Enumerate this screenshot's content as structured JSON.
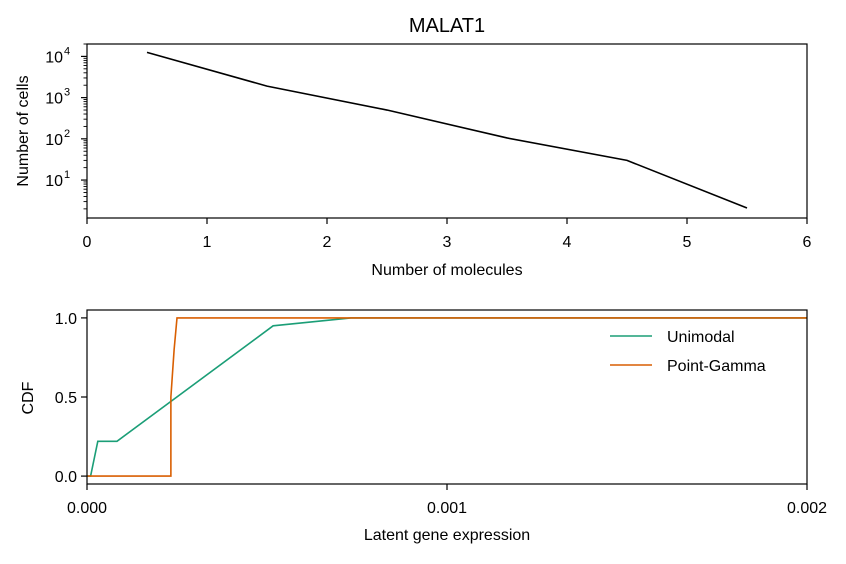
{
  "chart_data": [
    {
      "type": "line",
      "title": "MALAT1",
      "xlabel": "Number of molecules",
      "ylabel": "Number of cells",
      "yscale": "log",
      "xlim": [
        0,
        6
      ],
      "ylim": [
        1.2,
        20000
      ],
      "x_ticks": [
        "0",
        "1",
        "2",
        "3",
        "4",
        "5",
        "6"
      ],
      "y_ticks": [
        {
          "value": 10,
          "base": "10",
          "exp": "1"
        },
        {
          "value": 100,
          "base": "10",
          "exp": "2"
        },
        {
          "value": 1000,
          "base": "10",
          "exp": "3"
        },
        {
          "value": 10000,
          "base": "10",
          "exp": "4"
        }
      ],
      "series": [
        {
          "color": "#000000",
          "x": [
            0.5,
            1.5,
            2.5,
            3.5,
            4.5,
            5.5
          ],
          "y": [
            12500,
            1900,
            500,
            105,
            30,
            2.1
          ]
        }
      ],
      "grid": false
    },
    {
      "type": "line",
      "title": "",
      "xlabel": "Latent gene expression",
      "ylabel": "CDF",
      "xlim": [
        0,
        0.002
      ],
      "ylim": [
        -0.05,
        1.05
      ],
      "x_ticks": [
        "0.000",
        "0.001",
        "0.002"
      ],
      "y_ticks": [
        "0.0",
        "0.5",
        "1.0"
      ],
      "legend_position": "upper-right",
      "series": [
        {
          "name": "Unimodal",
          "color": "#1b9e77",
          "x": [
            0,
            1e-05,
            3e-05,
            8.33e-05,
            0.000517,
            0.000733,
            0.0015,
            0.002
          ],
          "y": [
            0,
            0,
            0.22,
            0.22,
            0.95,
            1.0,
            1.0,
            1.0
          ]
        },
        {
          "name": "Point-Gamma",
          "color": "#d95f02",
          "x": [
            0,
            0.000233,
            0.000233,
            0.000242,
            0.00025,
            0.002
          ],
          "y": [
            0,
            0,
            0.5,
            0.8,
            1.0,
            1.0
          ]
        }
      ],
      "grid": false
    }
  ]
}
